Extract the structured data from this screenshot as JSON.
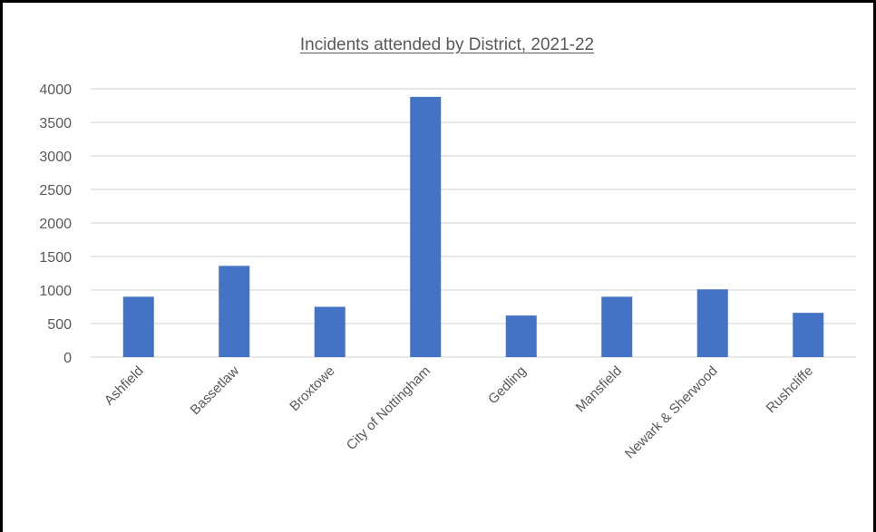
{
  "chart_data": {
    "type": "bar",
    "title": "Incidents attended by District, 2021-22",
    "xlabel": "",
    "ylabel": "",
    "categories": [
      "Ashfield",
      "Bassetlaw",
      "Broxtowe",
      "City of Nottingham",
      "Gedling",
      "Mansfield",
      "Newark & Sherwood",
      "Rushcliffe"
    ],
    "values": [
      900,
      1360,
      750,
      3880,
      620,
      900,
      1010,
      660
    ],
    "ylim": [
      0,
      4000
    ],
    "yticks": [
      "0",
      "500",
      "1000",
      "1500",
      "2000",
      "2500",
      "3000",
      "3500",
      "4000"
    ],
    "bar_color": "#4472C4",
    "gridline_color": "#D9D9D9",
    "grid": true,
    "legend": "none"
  }
}
